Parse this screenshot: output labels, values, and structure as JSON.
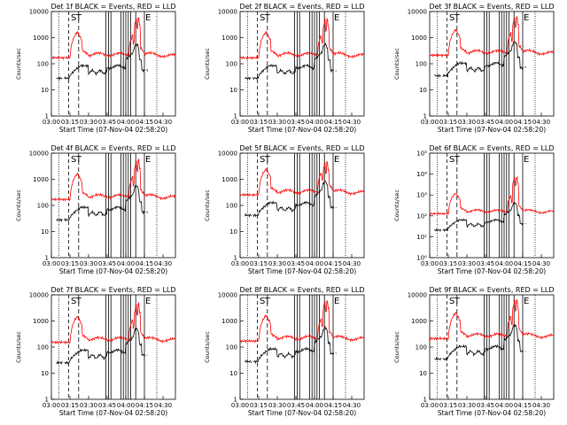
{
  "colors": {
    "events": "#000000",
    "lld": "#ff0000",
    "axes": "#000000",
    "background": "#ffffff"
  },
  "chart_data": [
    {
      "type": "line",
      "title": "Det 1f BLACK = Events, RED = LLD",
      "ylabel": "Counts/sec",
      "xlabel": "Start Time (07-Nov-04 02:58:20)",
      "x_tick_labels": [
        "03:00",
        "03:15",
        "03:30",
        "03:45",
        "04:00",
        "04:15",
        "04:30"
      ],
      "y_tick_labels": [
        "1",
        "10",
        "100",
        "1000",
        "10000"
      ],
      "ylim": [
        1,
        10000
      ],
      "series_names": [
        "Events",
        "LLD"
      ],
      "lld_level": 200,
      "peak": 6500,
      "interval_labels": [
        "S",
        "T",
        "E"
      ]
    },
    {
      "type": "line",
      "title": "Det 2f BLACK = Events, RED = LLD",
      "ylabel": "Counts/sec",
      "xlabel": "Start Time (07-Nov-04 02:58:20)",
      "x_tick_labels": [
        "03:00",
        "03:15",
        "03:30",
        "03:45",
        "04:00",
        "04:15",
        "04:30"
      ],
      "y_tick_labels": [
        "1",
        "10",
        "100",
        "1000",
        "10000"
      ],
      "ylim": [
        1,
        10000
      ],
      "series_names": [
        "Events",
        "LLD"
      ],
      "lld_level": 200,
      "peak": 5500,
      "interval_labels": [
        "S",
        "T",
        "E"
      ]
    },
    {
      "type": "line",
      "title": "Det 3f BLACK = Events, RED = LLD",
      "ylabel": "Counts/sec",
      "xlabel": "Start Time (07-Nov-04 02:58:20)",
      "x_tick_labels": [
        "03:00",
        "03:15",
        "03:30",
        "03:45",
        "04:00",
        "04:15",
        "04:30"
      ],
      "y_tick_labels": [
        "1",
        "10",
        "100",
        "1000",
        "10000"
      ],
      "ylim": [
        1,
        10000
      ],
      "series_names": [
        "Events",
        "LLD"
      ],
      "lld_level": 250,
      "peak": 7000,
      "interval_labels": [
        "S",
        "T",
        "E"
      ]
    },
    {
      "type": "line",
      "title": "Det 4f BLACK = Events, RED = LLD",
      "ylabel": "Counts/sec",
      "xlabel": "Start Time (07-Nov-04 02:58:20)",
      "x_tick_labels": [
        "03:00",
        "03:15",
        "03:30",
        "03:45",
        "04:00",
        "04:15",
        "04:30"
      ],
      "y_tick_labels": [
        "1",
        "10",
        "100",
        "1000",
        "10000"
      ],
      "ylim": [
        1,
        10000
      ],
      "series_names": [
        "Events",
        "LLD"
      ],
      "lld_level": 200,
      "peak": 6000,
      "interval_labels": [
        "S",
        "T",
        "E"
      ]
    },
    {
      "type": "line",
      "title": "Det 5f BLACK = Events, RED = LLD",
      "ylabel": "Counts/sec",
      "xlabel": "Start Time (07-Nov-04 02:58:20)",
      "x_tick_labels": [
        "03:00",
        "03:15",
        "03:30",
        "03:45",
        "04:00",
        "04:15",
        "04:30"
      ],
      "y_tick_labels": [
        "1",
        "10",
        "100",
        "1000",
        "10000"
      ],
      "ylim": [
        1,
        10000
      ],
      "series_names": [
        "Events",
        "LLD"
      ],
      "lld_level": 300,
      "peak": 5000,
      "interval_labels": [
        "S",
        "T",
        "E"
      ]
    },
    {
      "type": "line",
      "title": "Det 6f BLACK = Events, RED = LLD",
      "ylabel": "Counts/sec",
      "xlabel": "Start Time (07-Nov-04 02:58:20)",
      "x_tick_labels": [
        "03:00",
        "03:15",
        "03:30",
        "03:45",
        "04:00",
        "04:15",
        "04:30"
      ],
      "y_tick_labels": [
        "10⁰",
        "10¹",
        "10²",
        "10³",
        "10⁴",
        "10⁵"
      ],
      "ylim": [
        1,
        100000
      ],
      "series_names": [
        "Events",
        "LLD"
      ],
      "lld_level": 150,
      "peak": 8000,
      "interval_labels": [
        "S",
        "T",
        "E"
      ]
    },
    {
      "type": "line",
      "title": "Det 7f BLACK = Events, RED = LLD",
      "ylabel": "Counts/sec",
      "xlabel": "Start Time (07-Nov-04 02:58:20)",
      "x_tick_labels": [
        "03:00",
        "03:15",
        "03:30",
        "03:45",
        "04:00",
        "04:15",
        "04:30"
      ],
      "y_tick_labels": [
        "1",
        "10",
        "100",
        "1000",
        "10000"
      ],
      "ylim": [
        1,
        10000
      ],
      "series_names": [
        "Events",
        "LLD"
      ],
      "lld_level": 180,
      "peak": 5000,
      "interval_labels": [
        "S",
        "T",
        "E"
      ]
    },
    {
      "type": "line",
      "title": "Det 8f BLACK = Events, RED = LLD",
      "ylabel": "Counts/sec",
      "xlabel": "Start Time (07-Nov-04 02:58:20)",
      "x_tick_labels": [
        "03:00",
        "03:15",
        "03:30",
        "03:45",
        "04:00",
        "04:15",
        "04:30"
      ],
      "y_tick_labels": [
        "1",
        "10",
        "100",
        "1000",
        "10000"
      ],
      "ylim": [
        1,
        10000
      ],
      "series_names": [
        "Events",
        "LLD"
      ],
      "lld_level": 200,
      "peak": 6500,
      "interval_labels": [
        "S",
        "T",
        "E"
      ]
    },
    {
      "type": "line",
      "title": "Det 9f BLACK = Events, RED = LLD",
      "ylabel": "Counts/sec",
      "xlabel": "Start Time (07-Nov-04 02:58:20)",
      "x_tick_labels": [
        "03:00",
        "03:15",
        "03:30",
        "03:45",
        "04:00",
        "04:15",
        "04:30"
      ],
      "y_tick_labels": [
        "1",
        "10",
        "100",
        "1000",
        "10000"
      ],
      "ylim": [
        1,
        10000
      ],
      "series_names": [
        "Events",
        "LLD"
      ],
      "lld_level": 250,
      "peak": 7000,
      "interval_labels": [
        "S",
        "T",
        "E"
      ]
    }
  ]
}
